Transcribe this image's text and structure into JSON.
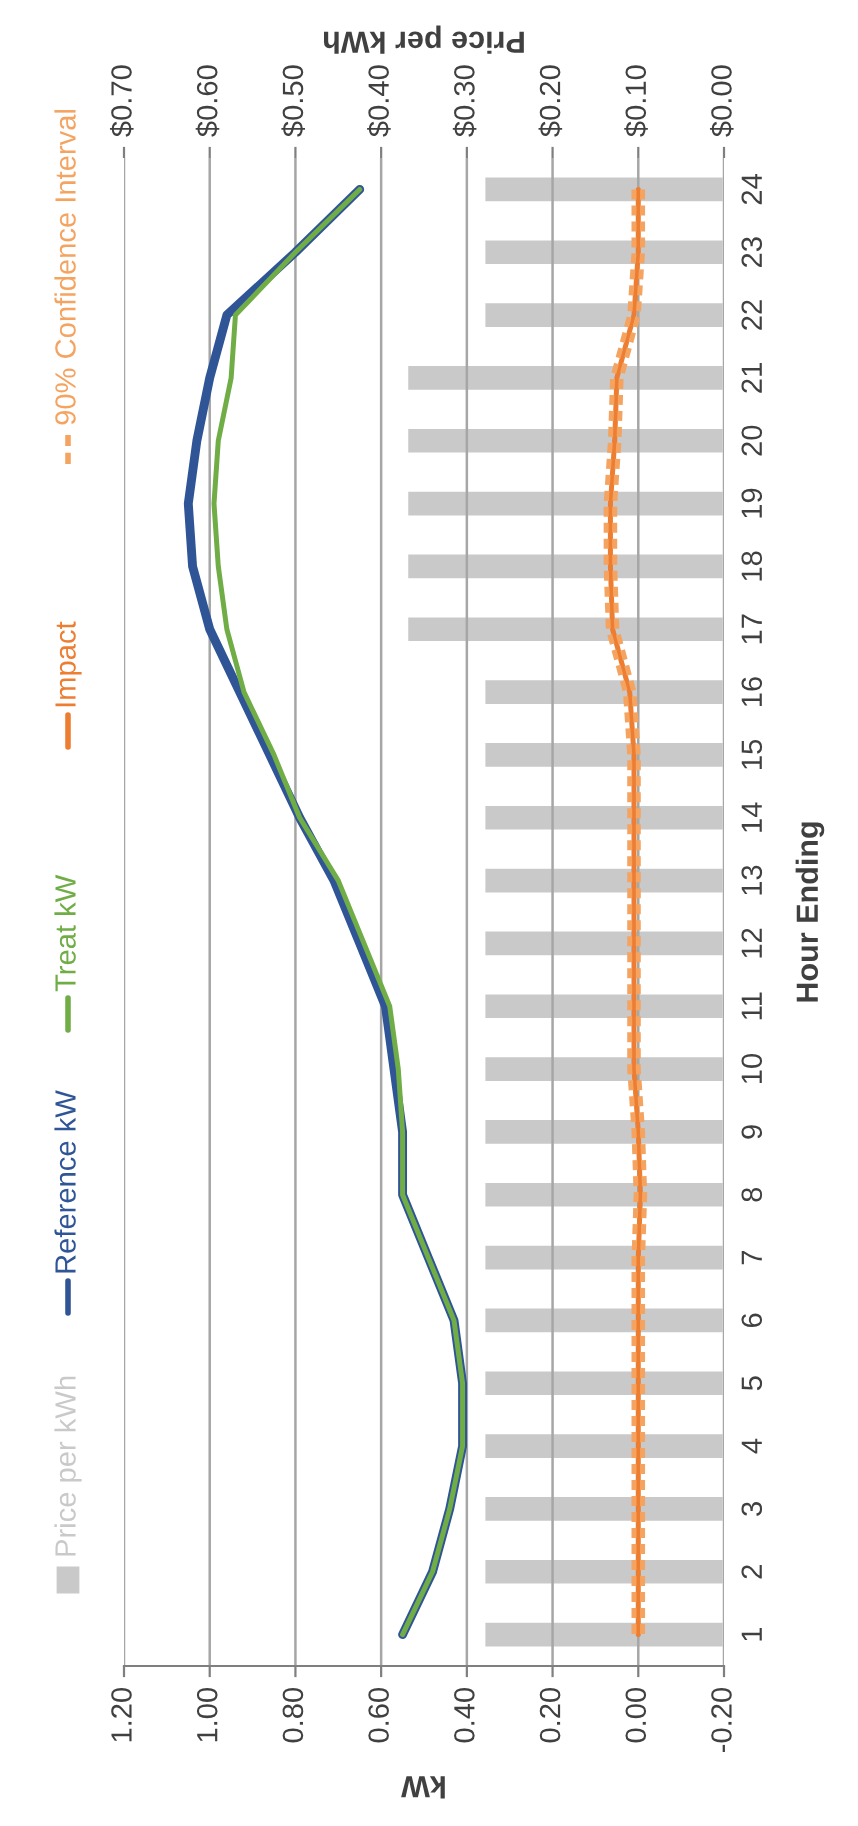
{
  "chart_data": {
    "type": "line",
    "orientation": "horizontal",
    "ylabel": "Hour Ending",
    "xlabel": "kW",
    "x2label": "Price per kWh",
    "categories": [
      "24",
      "23",
      "22",
      "21",
      "20",
      "19",
      "18",
      "17",
      "16",
      "15",
      "14",
      "13",
      "12",
      "11",
      "10",
      "9",
      "8",
      "7",
      "6",
      "5",
      "4",
      "3",
      "2",
      "1"
    ],
    "xlim": [
      1.2,
      -0.2
    ],
    "xticks": [
      {
        "value": 1.2,
        "label": "1.20"
      },
      {
        "value": 1.0,
        "label": "1.00"
      },
      {
        "value": 0.8,
        "label": "0.80"
      },
      {
        "value": 0.6,
        "label": "0.60"
      },
      {
        "value": 0.4,
        "label": "0.40"
      },
      {
        "value": 0.2,
        "label": "0.20"
      },
      {
        "value": 0,
        "label": "0.00"
      },
      {
        "value": -0.2,
        "label": "-0.20"
      }
    ],
    "x2lim": [
      0.7,
      0
    ],
    "x2ticks": [
      {
        "value": 0.7,
        "label": "$0.70"
      },
      {
        "value": 0.6,
        "label": "$0.60"
      },
      {
        "value": 0.5,
        "label": "$0.50"
      },
      {
        "value": 0.4,
        "label": "$0.40"
      },
      {
        "value": 0.3,
        "label": "$0.30"
      },
      {
        "value": 0.2,
        "label": "$0.20"
      },
      {
        "value": 0.1,
        "label": "$0.10"
      },
      {
        "value": 0,
        "label": "$0.00"
      }
    ],
    "grid": "x",
    "legend": "left",
    "series": [
      {
        "name": "Price per kWh",
        "type": "bar",
        "axis": "x2",
        "color": "#c9c9c9",
        "values": [
          0.28,
          0.28,
          0.28,
          0.37,
          0.37,
          0.37,
          0.37,
          0.37,
          0.28,
          0.28,
          0.28,
          0.28,
          0.28,
          0.28,
          0.28,
          0.28,
          0.28,
          0.28,
          0.28,
          0.28,
          0.28,
          0.28,
          0.28,
          0.28
        ]
      },
      {
        "name": "Reference kW",
        "color": "#2f5597",
        "values": [
          0.65,
          0.8,
          0.96,
          1.0,
          1.03,
          1.05,
          1.04,
          1.0,
          0.93,
          0.86,
          0.79,
          0.71,
          0.65,
          0.59,
          0.57,
          0.55,
          0.55,
          0.49,
          0.43,
          0.41,
          0.41,
          0.44,
          0.48,
          0.55
        ]
      },
      {
        "name": "Treat kW",
        "color": "#70ad47",
        "values": [
          0.65,
          0.8,
          0.94,
          0.95,
          0.98,
          0.99,
          0.98,
          0.96,
          0.92,
          0.85,
          0.79,
          0.7,
          0.64,
          0.58,
          0.56,
          0.55,
          0.55,
          0.49,
          0.43,
          0.41,
          0.41,
          0.44,
          0.48,
          0.55
        ]
      },
      {
        "name": "Impact",
        "color": "#ed7d31",
        "values": [
          0.0,
          0.0,
          0.01,
          0.05,
          0.055,
          0.065,
          0.065,
          0.06,
          0.02,
          0.01,
          0.01,
          0.01,
          0.01,
          0.01,
          0.01,
          0.0,
          -0.005,
          0.0,
          0.0,
          0.0,
          0.0,
          0.0,
          0.0,
          0.0
        ]
      },
      {
        "name": "90% Confidence Interval",
        "line_style": "dashed",
        "color": "#f4a460",
        "values": [
          -0.01,
          -0.01,
          0.0,
          0.04,
          0.045,
          0.055,
          0.055,
          0.05,
          0.01,
          0.0,
          0.0,
          0.0,
          0.0,
          0.0,
          0.0,
          -0.01,
          -0.015,
          -0.01,
          -0.01,
          -0.01,
          -0.01,
          -0.01,
          -0.01,
          -0.01
        ]
      },
      {
        "line_style": "dashed",
        "color": "#f4a460",
        "values": [
          0.01,
          0.01,
          0.02,
          0.06,
          0.065,
          0.075,
          0.075,
          0.07,
          0.03,
          0.02,
          0.02,
          0.02,
          0.02,
          0.02,
          0.02,
          0.01,
          0.005,
          0.01,
          0.01,
          0.01,
          0.01,
          0.01,
          0.01,
          0.01
        ]
      }
    ]
  }
}
